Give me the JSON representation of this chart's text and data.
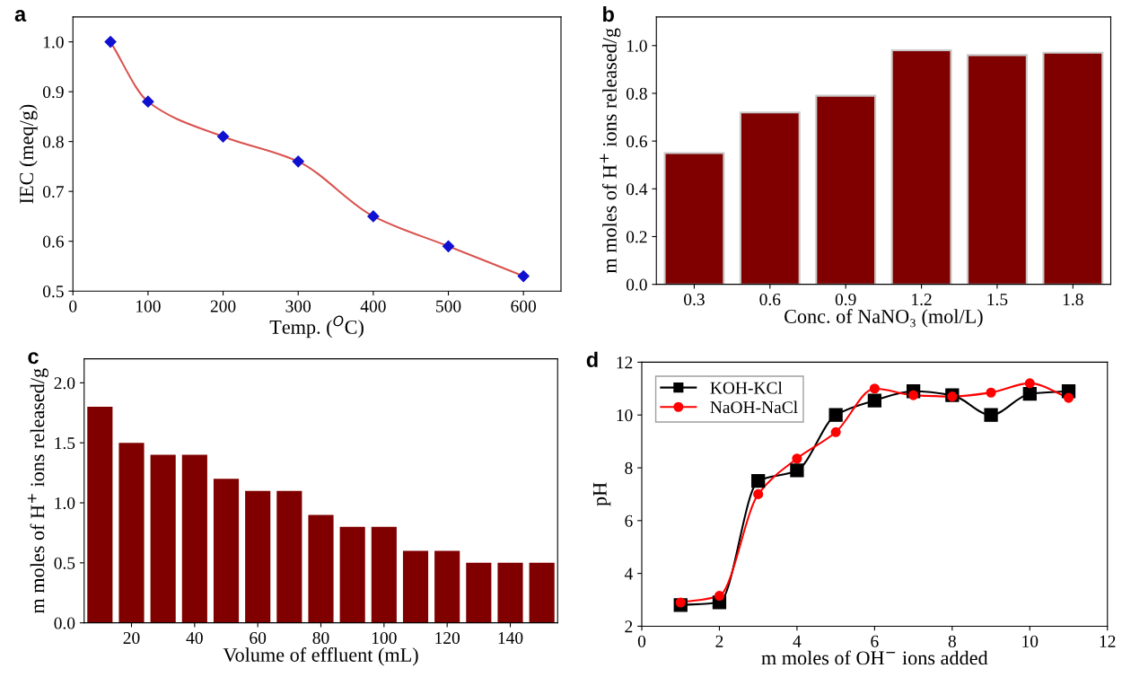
{
  "chart_data": [
    {
      "type": "line",
      "title": "a",
      "xlabel": "Temp. ($^{O}$C)",
      "ylabel": "IEC (meq/g)",
      "series": [
        {
          "color": "#d9534f",
          "colors": [
            "#1010d0",
            "#1010d0",
            "#1010d0",
            "#1010d0",
            "#1010d0",
            "#1010d0",
            "#1010d0"
          ],
          "x": [
            50,
            100,
            200,
            300,
            400,
            500,
            600
          ],
          "values": [
            1.0,
            0.88,
            0.81,
            0.76,
            0.65,
            0.59,
            0.53
          ]
        }
      ],
      "xlim": [
        0,
        650
      ],
      "xticks": [
        0,
        100,
        200,
        300,
        400,
        500,
        600
      ],
      "ylim": [
        0.5,
        1.05
      ],
      "yticks": [
        0.5,
        0.6,
        0.7,
        0.8,
        0.9,
        {
          "value": 1.0,
          "label": "1.0"
        }
      ],
      "marker": "diamond",
      "grid": false,
      "legend": false
    },
    {
      "type": "bar",
      "title": "b",
      "xlabel": "Conc. of NaNO₃ (mol/L)",
      "ylabel": "m moles of H$^{+}$ ions released/g",
      "categories": [
        "0.3",
        "0.6",
        "0.9",
        "1.2",
        "1.5",
        "1.8"
      ],
      "values": [
        0.55,
        0.72,
        0.79,
        0.98,
        0.96,
        0.97
      ],
      "color": "#800000",
      "ylim": [
        0,
        1.12
      ],
      "yticks": [
        {
          "value": 0,
          "label": "0.0"
        },
        0.2,
        0.4,
        0.6,
        0.8,
        {
          "value": 1.0,
          "label": "1.0"
        }
      ],
      "grid": false,
      "legend": false
    },
    {
      "type": "bar",
      "title": "c",
      "xlabel": "Volume of effluent (mL)",
      "ylabel": "m moles of H$^{+}$ ions released/g",
      "x": [
        10,
        20,
        30,
        40,
        50,
        60,
        70,
        80,
        90,
        100,
        110,
        120,
        130,
        140,
        150
      ],
      "values": [
        1.8,
        1.5,
        1.4,
        1.4,
        1.2,
        1.1,
        1.1,
        0.9,
        0.8,
        0.8,
        0.6,
        0.6,
        0.5,
        0.5,
        0.5
      ],
      "color": "#800000",
      "xlim": [
        5,
        155
      ],
      "xticks": [
        20,
        40,
        60,
        80,
        100,
        120,
        140
      ],
      "ylim": [
        0,
        2.2
      ],
      "yticks": [
        {
          "value": 0,
          "label": "0.0"
        },
        0.5,
        {
          "value": 1.0,
          "label": "1.0"
        },
        1.5,
        {
          "value": 2.0,
          "label": "2.0"
        }
      ],
      "grid": false,
      "legend": false
    },
    {
      "type": "line",
      "title": "d",
      "xlabel": "m moles of OH$^{−}$ ions added",
      "ylabel": "pH",
      "x": [
        1,
        2,
        3,
        4,
        5,
        6,
        7,
        8,
        9,
        10,
        11
      ],
      "series": [
        {
          "name": "KOH-KCl",
          "color": "#000000",
          "marker": "square",
          "values": [
            2.8,
            2.9,
            7.5,
            7.9,
            10.0,
            10.55,
            10.9,
            10.75,
            10.0,
            10.8,
            10.9
          ]
        },
        {
          "name": "NaOH-NaCl",
          "color": "#ff0000",
          "marker": "circle",
          "values": [
            2.9,
            3.15,
            7.0,
            8.35,
            9.35,
            11.0,
            10.75,
            10.7,
            10.85,
            11.2,
            10.65
          ]
        }
      ],
      "xlim": [
        0,
        12
      ],
      "xticks": [
        0,
        2,
        4,
        6,
        8,
        10,
        12
      ],
      "ylim": [
        2,
        12
      ],
      "yticks": [
        2,
        4,
        6,
        8,
        10,
        12
      ],
      "grid": false,
      "legend": "top left"
    }
  ]
}
